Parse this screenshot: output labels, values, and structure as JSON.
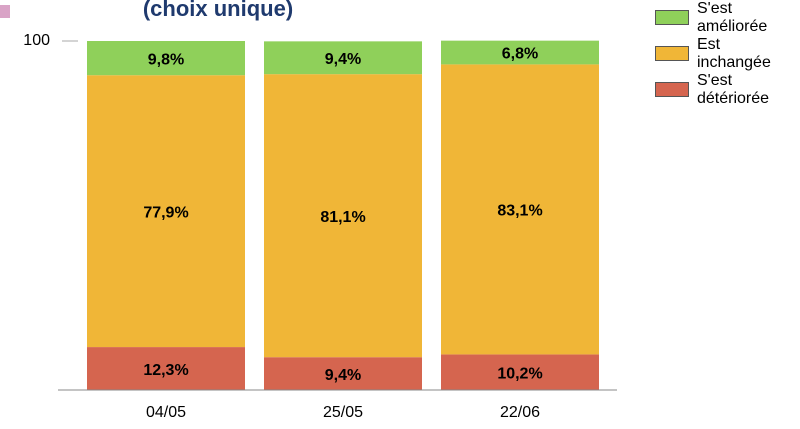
{
  "chart_data": {
    "type": "stacked_bar",
    "title": "(choix unique)",
    "categories": [
      "04/05",
      "25/05",
      "22/06"
    ],
    "series": [
      {
        "name": "S'est détériorée",
        "color": "#d5654f",
        "values": [
          12.3,
          9.4,
          10.2
        ],
        "value_labels": [
          "12,3%",
          "9,4%",
          "10,2%"
        ]
      },
      {
        "name": "Est inchangée",
        "color": "#f0b637",
        "values": [
          77.9,
          81.1,
          83.1
        ],
        "value_labels": [
          "77,9%",
          "81,1%",
          "83,1%"
        ]
      },
      {
        "name": "S'est améliorée",
        "color": "#8fd05a",
        "values": [
          9.8,
          9.4,
          6.8
        ],
        "value_labels": [
          "9,8%",
          "9,4%",
          "6,8%"
        ]
      }
    ],
    "ylim": [
      0,
      100
    ],
    "yticks": [
      100
    ],
    "legend": "right"
  }
}
